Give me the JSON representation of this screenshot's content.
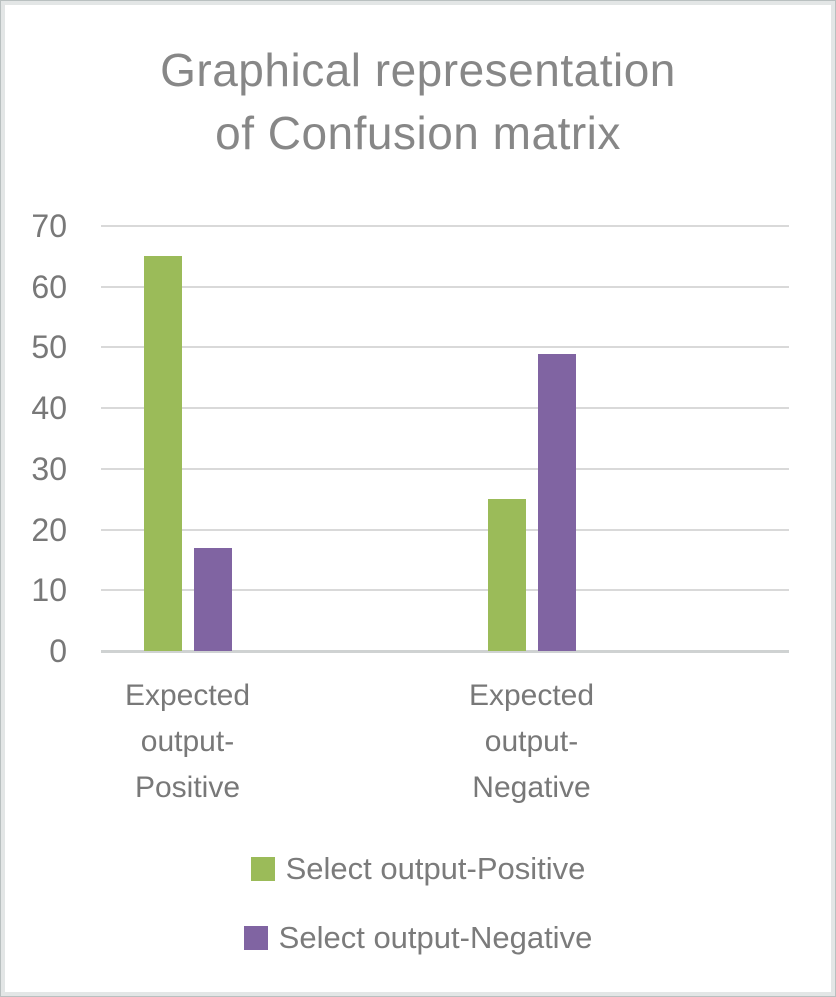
{
  "chart_data": {
    "type": "bar",
    "title": "Graphical representation of Confusion matrix",
    "title_lines": [
      "Graphical representation",
      "of Confusion matrix"
    ],
    "categories": [
      "Expected output-Positive",
      "Expected output-Negative"
    ],
    "series": [
      {
        "name": "Select output-Positive",
        "color": "#9BBB59",
        "values": [
          65,
          25
        ]
      },
      {
        "name": "Select output-Negative",
        "color": "#8064A2",
        "values": [
          17,
          49
        ]
      }
    ],
    "ylim": [
      0,
      70
    ],
    "yticks": [
      0,
      10,
      20,
      30,
      40,
      50,
      60,
      70
    ],
    "grid": true,
    "legend_position": "bottom"
  },
  "colors": {
    "title_text": "#878787",
    "axis_text": "#787878",
    "legend_text": "#7b7b7b",
    "gridline": "#d9d9d9",
    "baseline": "#cfd2d2",
    "background": "#ffffff",
    "frame_border": "#b9c0c0"
  }
}
